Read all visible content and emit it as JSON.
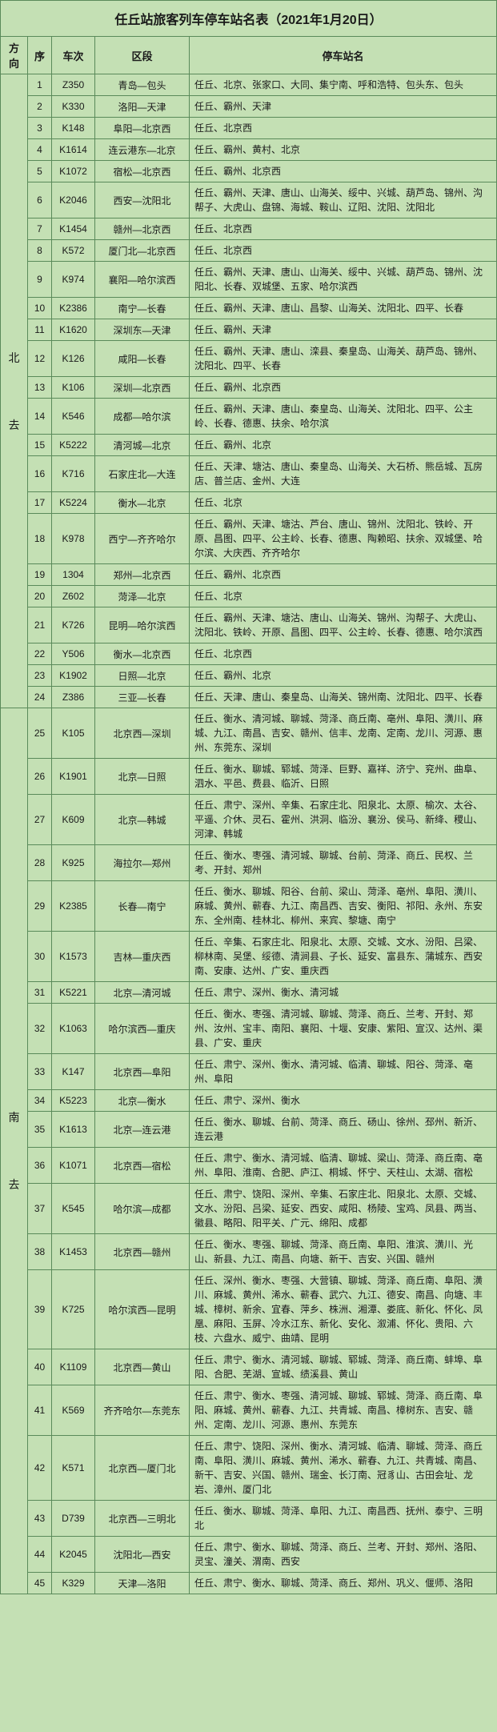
{
  "title": "任丘站旅客列车停车站名表（2021年1月20日）",
  "headers": {
    "direction": "方向",
    "seq": "序",
    "train": "车次",
    "segment": "区段",
    "stops": "停车站名"
  },
  "groups": [
    {
      "direction": "北\n\n去",
      "rows": [
        {
          "seq": "1",
          "train": "Z350",
          "segment": "青岛—包头",
          "stops": "任丘、北京、张家口、大同、集宁南、呼和浩特、包头东、包头"
        },
        {
          "seq": "2",
          "train": "K330",
          "segment": "洛阳—天津",
          "stops": "任丘、霸州、天津"
        },
        {
          "seq": "3",
          "train": "K148",
          "segment": "阜阳—北京西",
          "stops": "任丘、北京西"
        },
        {
          "seq": "4",
          "train": "K1614",
          "segment": "连云港东—北京",
          "stops": "任丘、霸州、黄村、北京"
        },
        {
          "seq": "5",
          "train": "K1072",
          "segment": "宿松—北京西",
          "stops": "任丘、霸州、北京西"
        },
        {
          "seq": "6",
          "train": "K2046",
          "segment": "西安—沈阳北",
          "stops": "任丘、霸州、天津、唐山、山海关、绥中、兴城、葫芦岛、锦州、沟帮子、大虎山、盘锦、海城、鞍山、辽阳、沈阳、沈阳北"
        },
        {
          "seq": "7",
          "train": "K1454",
          "segment": "赣州—北京西",
          "stops": "任丘、北京西"
        },
        {
          "seq": "8",
          "train": "K572",
          "segment": "厦门北—北京西",
          "stops": "任丘、北京西"
        },
        {
          "seq": "9",
          "train": "K974",
          "segment": "襄阳—哈尔滨西",
          "stops": "任丘、霸州、天津、唐山、山海关、绥中、兴城、葫芦岛、锦州、沈阳北、长春、双城堡、五家、哈尔滨西"
        },
        {
          "seq": "10",
          "train": "K2386",
          "segment": "南宁—长春",
          "stops": "任丘、霸州、天津、唐山、昌黎、山海关、沈阳北、四平、长春"
        },
        {
          "seq": "11",
          "train": "K1620",
          "segment": "深圳东—天津",
          "stops": "任丘、霸州、天津"
        },
        {
          "seq": "12",
          "train": "K126",
          "segment": "咸阳—长春",
          "stops": "任丘、霸州、天津、唐山、滦县、秦皇岛、山海关、葫芦岛、锦州、沈阳北、四平、长春"
        },
        {
          "seq": "13",
          "train": "K106",
          "segment": "深圳—北京西",
          "stops": "任丘、霸州、北京西"
        },
        {
          "seq": "14",
          "train": "K546",
          "segment": "成都—哈尔滨",
          "stops": "任丘、霸州、天津、唐山、秦皇岛、山海关、沈阳北、四平、公主岭、长春、德惠、扶余、哈尔滨"
        },
        {
          "seq": "15",
          "train": "K5222",
          "segment": "清河城—北京",
          "stops": "任丘、霸州、北京"
        },
        {
          "seq": "16",
          "train": "K716",
          "segment": "石家庄北—大连",
          "stops": "任丘、天津、塘沽、唐山、秦皇岛、山海关、大石桥、熊岳城、瓦房店、普兰店、金州、大连"
        },
        {
          "seq": "17",
          "train": "K5224",
          "segment": "衡水—北京",
          "stops": "任丘、北京"
        },
        {
          "seq": "18",
          "train": "K978",
          "segment": "西宁—齐齐哈尔",
          "stops": "任丘、霸州、天津、塘沽、芦台、唐山、锦州、沈阳北、铁岭、开原、昌图、四平、公主岭、长春、德惠、陶赖昭、扶余、双城堡、哈尔滨、大庆西、齐齐哈尔"
        },
        {
          "seq": "19",
          "train": "1304",
          "segment": "郑州—北京西",
          "stops": "任丘、霸州、北京西"
        },
        {
          "seq": "20",
          "train": "Z602",
          "segment": "菏泽—北京",
          "stops": "任丘、北京"
        },
        {
          "seq": "21",
          "train": "K726",
          "segment": "昆明—哈尔滨西",
          "stops": "任丘、霸州、天津、塘沽、唐山、山海关、锦州、沟帮子、大虎山、沈阳北、铁岭、开原、昌图、四平、公主岭、长春、德惠、哈尔滨西"
        },
        {
          "seq": "22",
          "train": "Y506",
          "segment": "衡水—北京西",
          "stops": "任丘、北京西"
        },
        {
          "seq": "23",
          "train": "K1902",
          "segment": "日照—北京",
          "stops": "任丘、霸州、北京"
        },
        {
          "seq": "24",
          "train": "Z386",
          "segment": "三亚—长春",
          "stops": "任丘、天津、唐山、秦皇岛、山海关、锦州南、沈阳北、四平、长春"
        }
      ]
    },
    {
      "direction": "南\n\n去",
      "rows": [
        {
          "seq": "25",
          "train": "K105",
          "segment": "北京西—深圳",
          "stops": "任丘、衡水、清河城、聊城、菏泽、商丘南、亳州、阜阳、潢川、麻城、九江、南昌、吉安、赣州、信丰、龙南、定南、龙川、河源、惠州、东莞东、深圳"
        },
        {
          "seq": "26",
          "train": "K1901",
          "segment": "北京—日照",
          "stops": "任丘、衡水、聊城、郓城、菏泽、巨野、嘉祥、济宁、兖州、曲阜、泗水、平邑、费县、临沂、日照"
        },
        {
          "seq": "27",
          "train": "K609",
          "segment": "北京—韩城",
          "stops": "任丘、肃宁、深州、辛集、石家庄北、阳泉北、太原、榆次、太谷、平遥、介休、灵石、霍州、洪洞、临汾、襄汾、侯马、新绛、稷山、河津、韩城"
        },
        {
          "seq": "28",
          "train": "K925",
          "segment": "海拉尔—郑州",
          "stops": "任丘、衡水、枣强、清河城、聊城、台前、菏泽、商丘、民权、兰考、开封、郑州"
        },
        {
          "seq": "29",
          "train": "K2385",
          "segment": "长春—南宁",
          "stops": "任丘、衡水、聊城、阳谷、台前、梁山、菏泽、亳州、阜阳、潢川、麻城、黄州、蕲春、九江、南昌西、吉安、衡阳、祁阳、永州、东安东、全州南、桂林北、柳州、来宾、黎塘、南宁"
        },
        {
          "seq": "30",
          "train": "K1573",
          "segment": "吉林—重庆西",
          "stops": "任丘、辛集、石家庄北、阳泉北、太原、交城、文水、汾阳、吕梁、柳林南、吴堡、绥德、清涧县、子长、延安、富县东、蒲城东、西安南、安康、达州、广安、重庆西"
        },
        {
          "seq": "31",
          "train": "K5221",
          "segment": "北京—清河城",
          "stops": "任丘、肃宁、深州、衡水、清河城"
        },
        {
          "seq": "32",
          "train": "K1063",
          "segment": "哈尔滨西—重庆",
          "stops": "任丘、衡水、枣强、清河城、聊城、菏泽、商丘、兰考、开封、郑州、汝州、宝丰、南阳、襄阳、十堰、安康、紫阳、宣汉、达州、渠县、广安、重庆"
        },
        {
          "seq": "33",
          "train": "K147",
          "segment": "北京西—阜阳",
          "stops": "任丘、肃宁、深州、衡水、清河城、临清、聊城、阳谷、菏泽、亳州、阜阳"
        },
        {
          "seq": "34",
          "train": "K5223",
          "segment": "北京—衡水",
          "stops": "任丘、肃宁、深州、衡水"
        },
        {
          "seq": "35",
          "train": "K1613",
          "segment": "北京—连云港",
          "stops": "任丘、衡水、聊城、台前、菏泽、商丘、砀山、徐州、邳州、新沂、连云港"
        },
        {
          "seq": "36",
          "train": "K1071",
          "segment": "北京西—宿松",
          "stops": "任丘、肃宁、衡水、清河城、临清、聊城、梁山、菏泽、商丘南、亳州、阜阳、淮南、合肥、庐江、桐城、怀宁、天柱山、太湖、宿松"
        },
        {
          "seq": "37",
          "train": "K545",
          "segment": "哈尔滨—成都",
          "stops": "任丘、肃宁、饶阳、深州、辛集、石家庄北、阳泉北、太原、交城、文水、汾阳、吕梁、延安、西安、咸阳、杨陵、宝鸡、凤县、两当、徽县、略阳、阳平关、广元、绵阳、成都"
        },
        {
          "seq": "38",
          "train": "K1453",
          "segment": "北京西—赣州",
          "stops": "任丘、衡水、枣强、聊城、菏泽、商丘南、阜阳、淮滨、潢川、光山、新县、九江、南昌、向塘、新干、吉安、兴国、赣州"
        },
        {
          "seq": "39",
          "train": "K725",
          "segment": "哈尔滨西—昆明",
          "stops": "任丘、深州、衡水、枣强、大营镇、聊城、菏泽、商丘南、阜阳、潢川、麻城、黄州、浠水、蕲春、武穴、九江、德安、南昌、向塘、丰城、樟树、新余、宜春、萍乡、株洲、湘潭、娄底、新化、怀化、凤凰、麻阳、玉屏、冷水江东、新化、安化、溆浦、怀化、贵阳、六枝、六盘水、威宁、曲靖、昆明"
        },
        {
          "seq": "40",
          "train": "K1109",
          "segment": "北京西—黄山",
          "stops": "任丘、肃宁、衡水、清河城、聊城、郓城、菏泽、商丘南、蚌埠、阜阳、合肥、芜湖、宣城、绩溪县、黄山"
        },
        {
          "seq": "41",
          "train": "K569",
          "segment": "齐齐哈尔—东莞东",
          "stops": "任丘、肃宁、衡水、枣强、清河城、聊城、郓城、菏泽、商丘南、阜阳、麻城、黄州、蕲春、九江、共青城、南昌、樟树东、吉安、赣州、定南、龙川、河源、惠州、东莞东"
        },
        {
          "seq": "42",
          "train": "K571",
          "segment": "北京西—厦门北",
          "stops": "任丘、肃宁、饶阳、深州、衡水、清河城、临清、聊城、菏泽、商丘南、阜阳、潢川、麻城、黄州、浠水、蕲春、九江、共青城、南昌、新干、吉安、兴国、赣州、瑞金、长汀南、冠豸山、古田会址、龙岩、漳州、厦门北"
        },
        {
          "seq": "43",
          "train": "D739",
          "segment": "北京西—三明北",
          "stops": "任丘、衡水、聊城、菏泽、阜阳、九江、南昌西、抚州、泰宁、三明北"
        },
        {
          "seq": "44",
          "train": "K2045",
          "segment": "沈阳北—西安",
          "stops": "任丘、肃宁、衡水、聊城、菏泽、商丘、兰考、开封、郑州、洛阳、灵宝、潼关、渭南、西安"
        },
        {
          "seq": "45",
          "train": "K329",
          "segment": "天津—洛阳",
          "stops": "任丘、肃宁、衡水、聊城、菏泽、商丘、郑州、巩义、偃师、洛阳"
        }
      ]
    }
  ]
}
